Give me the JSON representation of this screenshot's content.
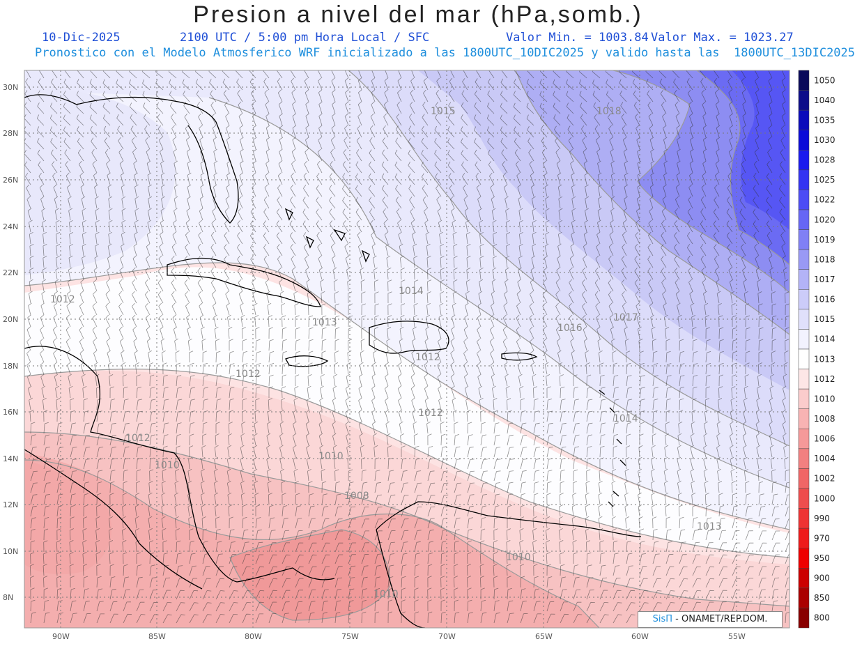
{
  "header": {
    "title": "Presion a nivel del mar (hPa,somb.)",
    "date": "10-Dic-2025",
    "time": "2100 UTC / 5:00 pm Hora Local / SFC",
    "min": "Valor Min. = 1003.84",
    "max": "Valor Max. = 1023.27",
    "model_line": "Pronostico con el Modelo Atmosferico WRF inicializado a las 1800UTC_10DIC2025 y valido hasta las  1800UTC_13DIC2025"
  },
  "axes": {
    "lon_labels": [
      "90W",
      "85W",
      "80W",
      "75W",
      "70W",
      "65W",
      "60W",
      "55W"
    ],
    "lat_labels": [
      "30N",
      "28N",
      "26N",
      "24N",
      "22N",
      "20N",
      "18N",
      "16N",
      "14N",
      "12N",
      "10N",
      "8N"
    ]
  },
  "colorbar": {
    "levels": [
      "1050",
      "1040",
      "1035",
      "1030",
      "1028",
      "1025",
      "1022",
      "1020",
      "1019",
      "1018",
      "1017",
      "1016",
      "1015",
      "1014",
      "1013",
      "1012",
      "1010",
      "1008",
      "1006",
      "1004",
      "1002",
      "1000",
      "990",
      "970",
      "950",
      "900",
      "850",
      "800"
    ],
    "colors": [
      "#0a0a5a",
      "#0d0d8a",
      "#0b0bbb",
      "#0a0ad8",
      "#1a1aee",
      "#3333f2",
      "#4d4df5",
      "#6666f5",
      "#8080f5",
      "#9999f5",
      "#b3b3f7",
      "#ccccf9",
      "#e0e0fb",
      "#f2f2fe",
      "#ffffff",
      "#fde6e6",
      "#fbcccc",
      "#f8b3b3",
      "#f59999",
      "#f28080",
      "#f06666",
      "#ee4d4d",
      "#ee3333",
      "#ee1a1a",
      "#ee0000",
      "#cc0000",
      "#aa0000",
      "#880000"
    ]
  },
  "isobar_labels": [
    "1015",
    "1018",
    "1012",
    "1013",
    "1014",
    "1016",
    "1017",
    "1012",
    "1012",
    "1012",
    "1014",
    "1012",
    "1010",
    "1010",
    "1008",
    "1010",
    "1010",
    "1013"
  ],
  "credit": {
    "brand": "SisΠ",
    "rest": " - ONAMET/REP.DOM."
  }
}
